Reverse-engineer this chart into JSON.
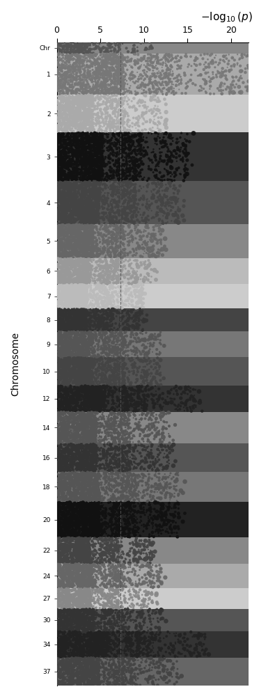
{
  "title": "$-\\log_{10}(p)$",
  "ylabel": "Chromosome",
  "xlim_max": 22,
  "dashed_line_x": 7.3,
  "xticks": [
    0,
    5,
    10,
    15,
    20
  ],
  "xtick_labels": [
    "0",
    "5",
    "10",
    "15",
    "20"
  ],
  "chromosomes": [
    "Chr",
    "1",
    "2",
    "3",
    "4",
    "5",
    "6",
    "7",
    "8",
    "9",
    "10",
    "12",
    "14",
    "16",
    "18",
    "20",
    "22",
    "24",
    "27",
    "30",
    "34",
    "37"
  ],
  "row_heights": [
    0.6,
    2.2,
    2.0,
    2.6,
    2.3,
    1.8,
    1.4,
    1.3,
    1.2,
    1.4,
    1.5,
    1.4,
    1.7,
    1.5,
    1.6,
    1.9,
    1.4,
    1.3,
    1.1,
    1.2,
    1.4,
    1.5
  ],
  "band_colors": [
    "#888888",
    "#aaaaaa",
    "#cccccc",
    "#333333",
    "#555555",
    "#888888",
    "#bbbbbb",
    "#cccccc",
    "#444444",
    "#777777",
    "#555555",
    "#333333",
    "#888888",
    "#555555",
    "#777777",
    "#222222",
    "#888888",
    "#aaaaaa",
    "#cccccc",
    "#555555",
    "#333333",
    "#666666"
  ],
  "point_colors": [
    "#555555",
    "#777777",
    "#aaaaaa",
    "#111111",
    "#444444",
    "#666666",
    "#999999",
    "#bbbbbb",
    "#333333",
    "#555555",
    "#444444",
    "#222222",
    "#555555",
    "#333333",
    "#555555",
    "#111111",
    "#444444",
    "#666666",
    "#888888",
    "#333333",
    "#222222",
    "#444444"
  ],
  "num_snps": [
    300,
    1800,
    1500,
    2200,
    2000,
    1600,
    1200,
    1100,
    1000,
    1200,
    1300,
    1200,
    1500,
    1300,
    1400,
    1700,
    1200,
    1100,
    900,
    1000,
    1200,
    1300
  ],
  "max_vals": [
    11,
    22,
    12,
    15,
    14,
    12,
    11,
    10,
    10,
    12,
    12,
    16,
    13,
    13,
    14,
    14,
    11,
    12,
    11,
    12,
    17,
    14
  ],
  "seed": 123
}
